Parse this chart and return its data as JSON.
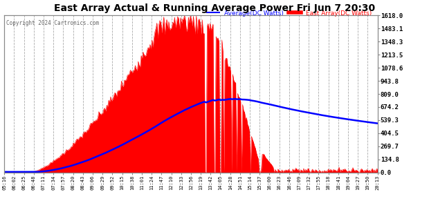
{
  "title": "East Array Actual & Running Average Power Fri Jun 7 20:30",
  "copyright": "Copyright 2024 Cartronics.com",
  "ylabel_right_values": [
    1618.0,
    1483.1,
    1348.3,
    1213.5,
    1078.6,
    943.8,
    809.0,
    674.2,
    539.3,
    404.5,
    269.7,
    134.8,
    0.0
  ],
  "ymax": 1618.0,
  "ymin": 0.0,
  "avg_color": "#0000ff",
  "east_color": "#ff0000",
  "fill_color": "#ff0000",
  "bg_color": "#ffffff",
  "grid_color": "#aaaaaa",
  "title_color": "#000000",
  "copyright_color": "#000000",
  "avg_label": "Average(DC Watts)",
  "east_label": "East Array(DC Watts)",
  "tick_labels": [
    "05:16",
    "06:02",
    "06:25",
    "06:48",
    "07:11",
    "07:34",
    "07:57",
    "08:20",
    "08:43",
    "09:06",
    "09:29",
    "09:52",
    "10:15",
    "10:38",
    "11:01",
    "11:24",
    "11:47",
    "12:10",
    "12:33",
    "12:56",
    "13:19",
    "13:42",
    "14:05",
    "14:28",
    "14:51",
    "15:14",
    "15:37",
    "16:00",
    "16:23",
    "16:46",
    "17:09",
    "17:32",
    "17:55",
    "18:18",
    "18:41",
    "19:04",
    "19:27",
    "19:50",
    "20:13"
  ]
}
